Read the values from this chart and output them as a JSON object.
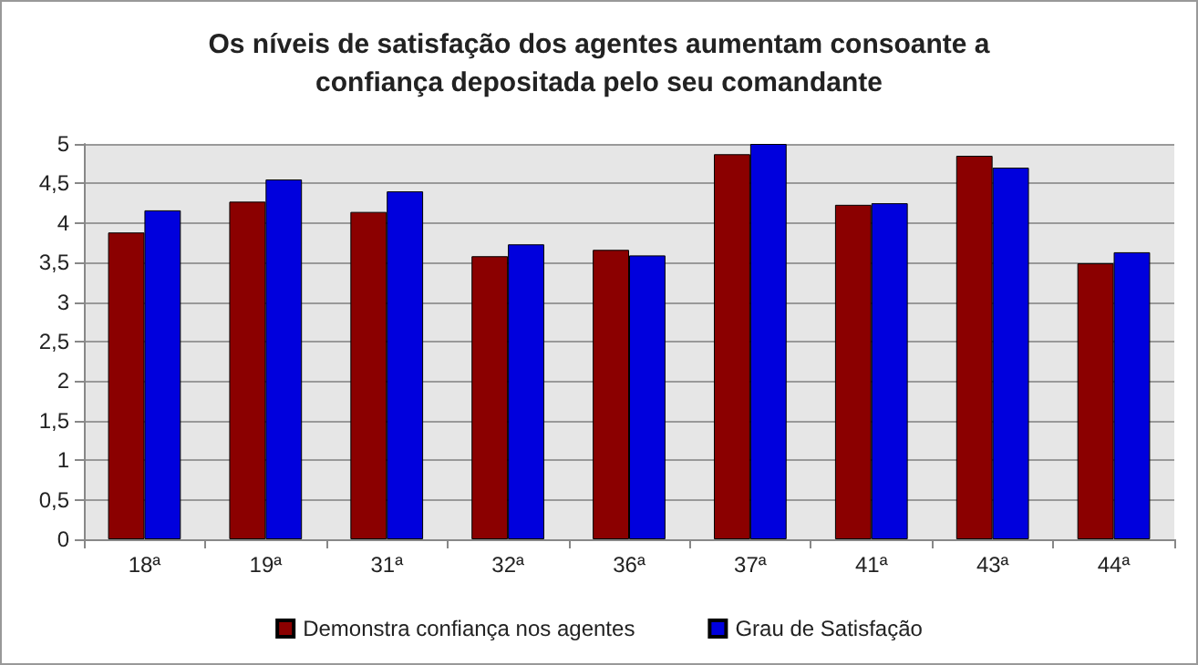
{
  "chart_data": {
    "type": "bar",
    "title": "Os níveis de satisfação dos agentes aumentam consoante a\nconfiança depositada pelo seu comandante",
    "categories": [
      "18ª",
      "19ª",
      "31ª",
      "32ª",
      "36ª",
      "37ª",
      "41ª",
      "43ª",
      "44ª"
    ],
    "series": [
      {
        "name": "Demonstra confiança nos agentes",
        "color": "#8b0000",
        "values": [
          3.88,
          4.27,
          4.14,
          3.58,
          3.66,
          4.87,
          4.23,
          4.85,
          3.49
        ]
      },
      {
        "name": "Grau de Satisfação",
        "color": "#0000dd",
        "values": [
          4.16,
          4.55,
          4.4,
          3.73,
          3.59,
          5.0,
          4.25,
          4.7,
          3.63
        ]
      }
    ],
    "ylim": [
      0,
      5
    ],
    "yticks": [
      0,
      {
        "value": 0.5,
        "label": "0,5"
      },
      1,
      {
        "value": 1.5,
        "label": "1,5"
      },
      2,
      {
        "value": 2.5,
        "label": "2,5"
      },
      3,
      {
        "value": 3.5,
        "label": "3,5"
      },
      4,
      {
        "value": 4.5,
        "label": "4,5"
      },
      5
    ],
    "grid": "y",
    "legend": "bottom"
  }
}
